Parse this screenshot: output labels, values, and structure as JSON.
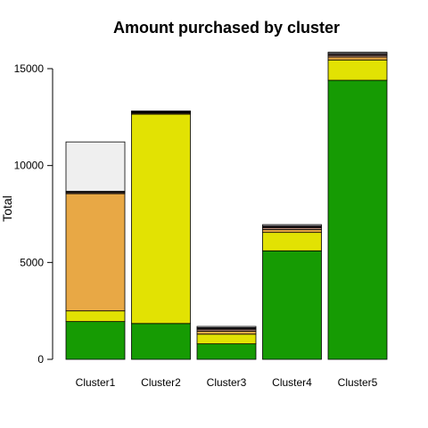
{
  "chart_data": {
    "type": "bar",
    "stacked": true,
    "title": "Amount purchased by cluster",
    "xlabel": "",
    "ylabel": "Total",
    "ylim": [
      0,
      16000
    ],
    "yticks": [
      "0",
      "5000",
      "10000",
      "15000"
    ],
    "categories": [
      "Cluster1",
      "Cluster2",
      "Cluster3",
      "Cluster4",
      "Cluster5"
    ],
    "grid": false,
    "series": [
      {
        "color": "#169b03",
        "values": [
          1950,
          1850,
          800,
          5600,
          14400
        ]
      },
      {
        "color": "#e2e203",
        "values": [
          550,
          10800,
          500,
          950,
          1050
        ]
      },
      {
        "color": "#e8a845",
        "values": [
          6050,
          50,
          150,
          150,
          150
        ]
      },
      {
        "color": "#d9a08a",
        "values": [
          50,
          30,
          80,
          80,
          80
        ]
      },
      {
        "color": "#8b6a6a",
        "values": [
          40,
          30,
          60,
          60,
          60
        ]
      },
      {
        "color": "#c0a9cf",
        "values": [
          30,
          20,
          50,
          50,
          50
        ]
      },
      {
        "color": "#efefef",
        "values": [
          2550,
          40,
          60,
          60,
          60
        ]
      }
    ]
  }
}
